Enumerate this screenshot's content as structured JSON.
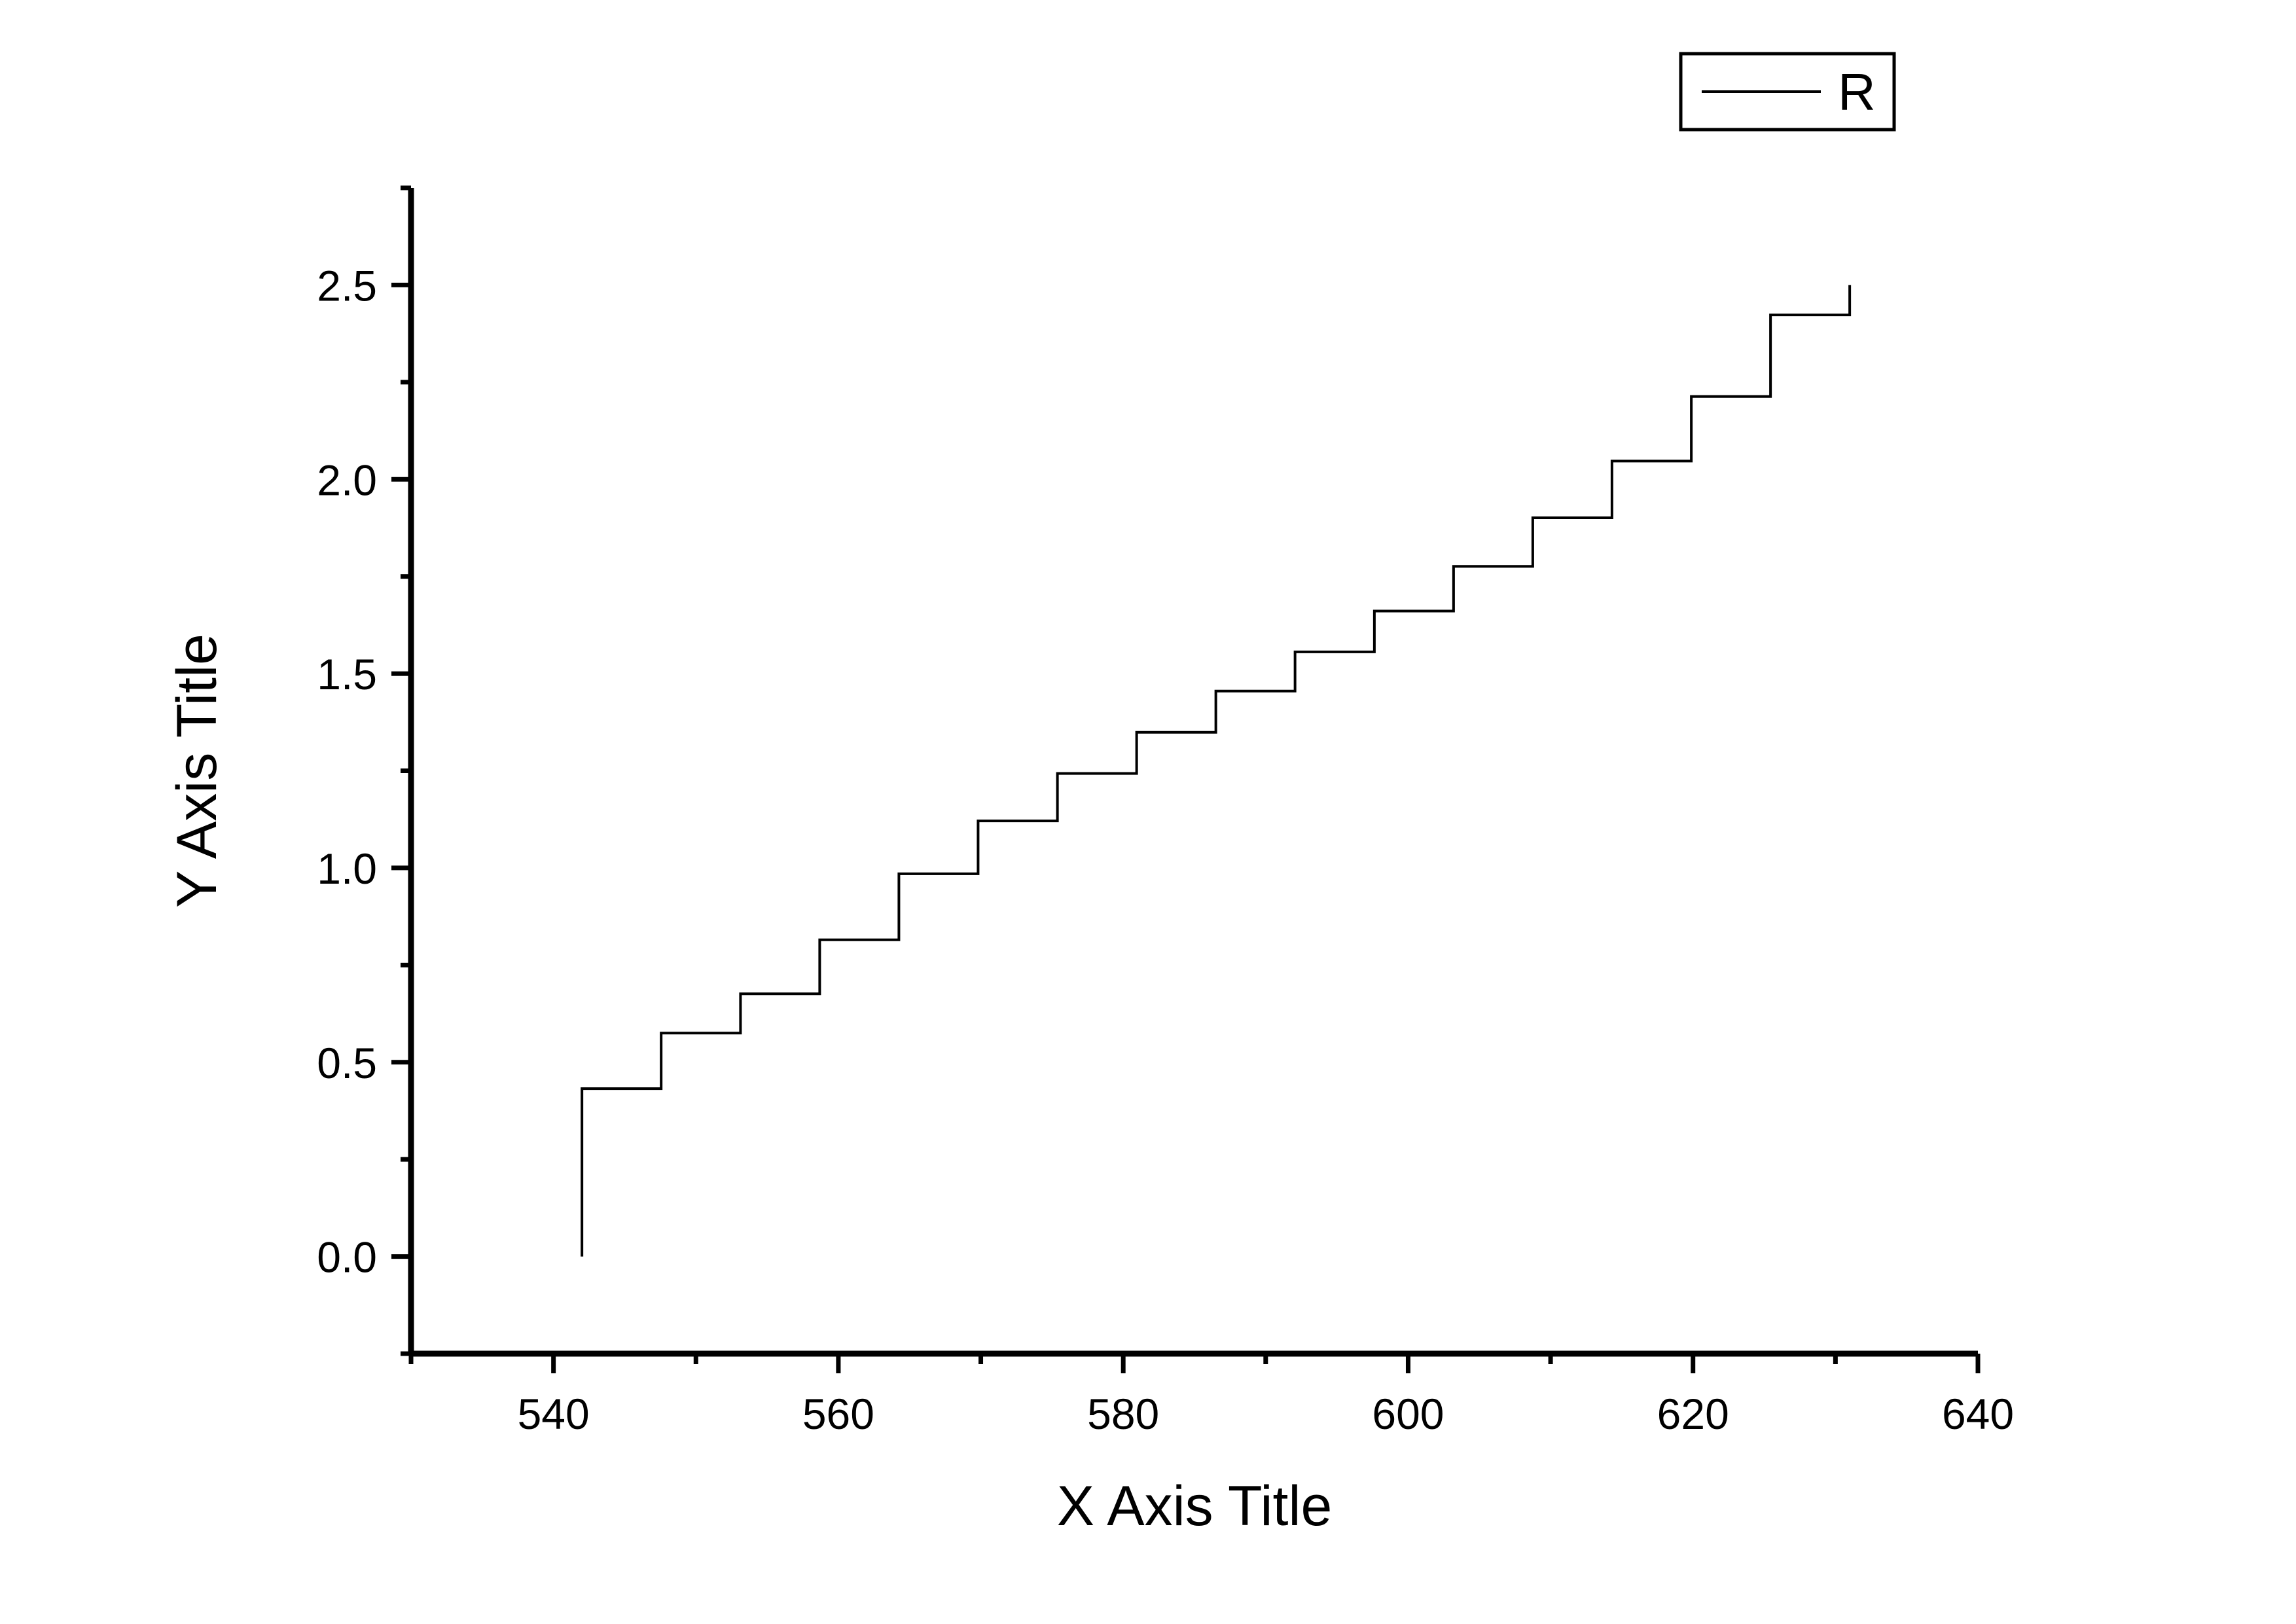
{
  "chart_data": {
    "type": "line",
    "subtype": "step-vertical-then-horizontal",
    "title": "",
    "xlabel": "X Axis Title",
    "ylabel": "Y Axis Title",
    "grid": false,
    "background_color": "#ffffff",
    "line_color": "#000000",
    "axis_color": "#000000",
    "xlim": [
      530,
      640
    ],
    "ylim": [
      -0.25,
      2.75
    ],
    "x_major_ticks": [
      540,
      560,
      580,
      600,
      620,
      640
    ],
    "x_major_tick_labels": [
      "540",
      "560",
      "580",
      "600",
      "620",
      "640"
    ],
    "x_minor_ticks": [
      530,
      550,
      570,
      590,
      610,
      630
    ],
    "y_major_ticks": [
      0.0,
      0.5,
      1.0,
      1.5,
      2.0,
      2.5
    ],
    "y_major_tick_labels": [
      "0.0",
      "0.5",
      "1.0",
      "1.5",
      "2.0",
      "2.5"
    ],
    "y_minor_ticks": [
      -0.25,
      0.25,
      0.75,
      1.25,
      1.75,
      2.25,
      2.75
    ],
    "legend": {
      "position": "top-right",
      "entries": [
        {
          "label": "R",
          "color": "#000000"
        }
      ]
    },
    "series": [
      {
        "name": "R",
        "color": "#000000",
        "step_mode": "pre",
        "x": [
          542.0,
          547.56,
          553.13,
          558.69,
          564.25,
          569.81,
          575.38,
          580.94,
          586.5,
          592.06,
          597.63,
          603.19,
          608.75,
          614.31,
          619.88,
          625.44,
          631.0,
          631.0
        ],
        "y": [
          0.0,
          0.432,
          0.575,
          0.676,
          0.815,
          0.985,
          1.121,
          1.243,
          1.349,
          1.455,
          1.556,
          1.661,
          1.776,
          1.901,
          2.047,
          2.213,
          2.423,
          2.5
        ]
      }
    ]
  }
}
